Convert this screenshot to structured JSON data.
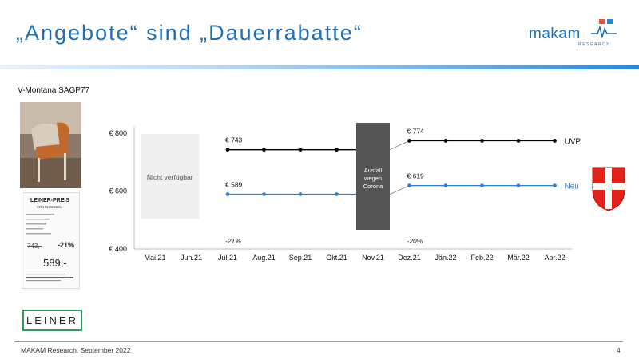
{
  "slide": {
    "title": "„Angebote“ sind „Dauerrabatte“",
    "logo_text": "makam",
    "logo_sub": "RESEARCH",
    "product_label": "V-Montana SAGP77",
    "brand_label": "LEINER",
    "footer": "MAKAM Research, September 2022",
    "page_number": "4",
    "price_tag": {
      "heading": "LEINER-PREIS",
      "sub": "WOHNSESSEL",
      "old": "743,-",
      "discount": "-21%",
      "new": "589,-"
    }
  },
  "chart_data": {
    "type": "line",
    "categories": [
      "Mai.21",
      "Jun.21",
      "Jul.21",
      "Aug.21",
      "Sep.21",
      "Okt.21",
      "Nov.21",
      "Dez.21",
      "Jän.22",
      "Feb.22",
      "Mär.22",
      "Apr.22"
    ],
    "y_ticks": [
      "€ 800",
      "€ 600",
      "€ 400"
    ],
    "ylim": [
      400,
      800
    ],
    "series": [
      {
        "name": "UVP",
        "color": "#000000",
        "values": [
          null,
          null,
          743,
          743,
          743,
          743,
          null,
          774,
          774,
          774,
          774,
          774
        ]
      },
      {
        "name": "Neu",
        "color": "#2f80d0",
        "values": [
          null,
          null,
          589,
          589,
          589,
          589,
          null,
          619,
          619,
          619,
          619,
          619
        ]
      }
    ],
    "data_labels": [
      {
        "series": "UVP",
        "category": "Jul.21",
        "text": "€ 743"
      },
      {
        "series": "Neu",
        "category": "Jul.21",
        "text": "€ 589"
      },
      {
        "series": "UVP",
        "category": "Dez.21",
        "text": "€ 774"
      },
      {
        "series": "Neu",
        "category": "Dez.21",
        "text": "€ 619"
      }
    ],
    "discount_labels": [
      {
        "category": "Jul.21",
        "text": "-21%"
      },
      {
        "category": "Dez.21",
        "text": "-20%"
      }
    ],
    "annotations": {
      "unavailable": {
        "text": "Nicht verfügbar",
        "from": "Mai.21",
        "to": "Jun.21",
        "color": "#efefef"
      },
      "outage": {
        "lines": [
          "Ausfall",
          "wegen",
          "Corona"
        ],
        "category": "Nov.21",
        "color": "#555555"
      }
    },
    "grid": false,
    "legend": "right"
  }
}
